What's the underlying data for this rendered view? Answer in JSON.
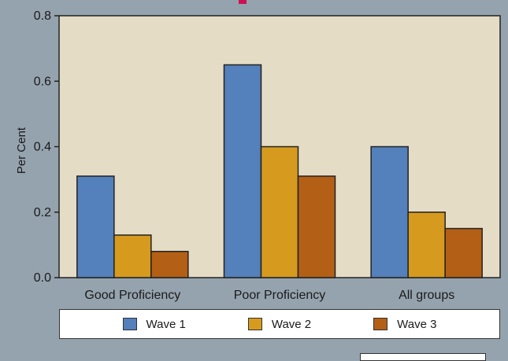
{
  "colors": {
    "background": "#95a3ae",
    "plot_background": "#e5dcc6",
    "accent_mark": "#cc1155"
  },
  "chart_data": {
    "type": "bar",
    "categories": [
      "Good Proficiency",
      "Poor Proficiency",
      "All groups"
    ],
    "series": [
      {
        "name": "Wave 1",
        "color": "#5480bb",
        "values": [
          0.31,
          0.65,
          0.4
        ]
      },
      {
        "name": "Wave 2",
        "color": "#d69a1f",
        "values": [
          0.13,
          0.4,
          0.2
        ]
      },
      {
        "name": "Wave 3",
        "color": "#b35f16",
        "values": [
          0.08,
          0.31,
          0.15
        ]
      }
    ],
    "ylabel": "Per Cent",
    "ylim": [
      0,
      0.8
    ],
    "yticks": [
      "0.0",
      "0.2",
      "0.4",
      "0.6",
      "0.8"
    ],
    "legend_position": "bottom"
  }
}
